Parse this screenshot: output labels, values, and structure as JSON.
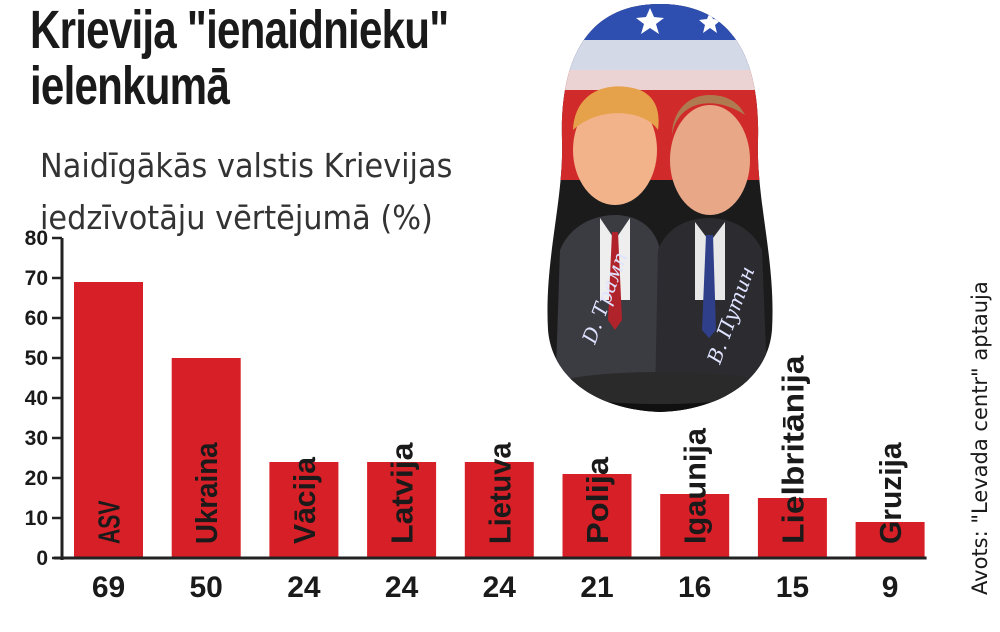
{
  "title": [
    "Krievija \"ienaidnieku\"",
    "ielenkumā"
  ],
  "subtitle": [
    "Naidīgākās valstis Krievijas",
    "iedzīvotāju vērtējumā (%)"
  ],
  "source": "Avots: \"Levada centr\" aptauja",
  "image": {
    "description": "Matryoshka doll painted with two suited figures",
    "signatures": [
      "D. Трамп",
      "В. Путин"
    ]
  },
  "colors": {
    "bar": "#d71f27",
    "axis": "#222222",
    "text": "#1a1a1a"
  },
  "chart_data": {
    "type": "bar",
    "title": "Naidīgākās valstis Krievijas iedzīvotāju vērtējumā (%)",
    "categories": [
      "ASV",
      "Ukraina",
      "Vācija",
      "Latvija",
      "Lietuva",
      "Polija",
      "Igaunija",
      "Lielbritānija",
      "Gruzija"
    ],
    "values": [
      69,
      50,
      24,
      24,
      24,
      21,
      16,
      15,
      9
    ],
    "ylim": [
      0,
      80
    ],
    "yticks": [
      0,
      10,
      20,
      30,
      40,
      50,
      60,
      70,
      80
    ],
    "grid": false,
    "legend": "none",
    "category_labels_inside_bars": true,
    "value_labels_below_axis": true
  }
}
